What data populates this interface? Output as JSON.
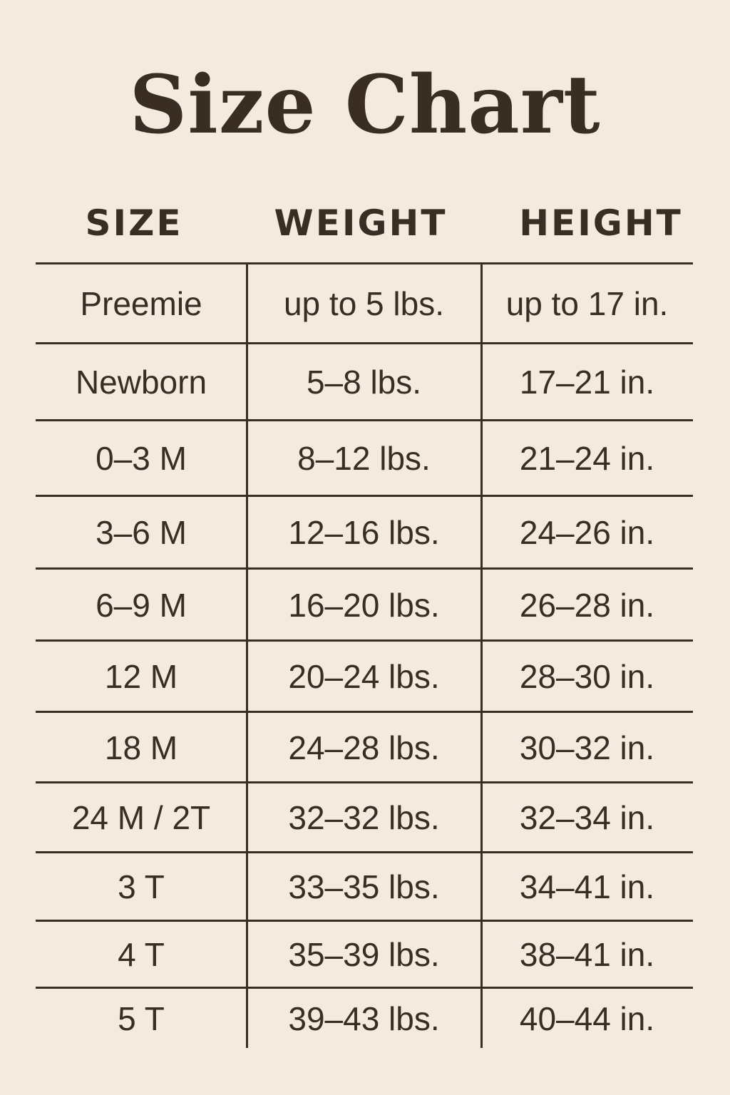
{
  "title": "Size Chart",
  "colors": {
    "background": "#f3ebdf",
    "text": "#3a2d24"
  },
  "table": {
    "headers": [
      "SIZE",
      "WEIGHT",
      "HEIGHT"
    ],
    "rows": [
      [
        "Preemie",
        "up to 5 lbs.",
        "up to 17 in."
      ],
      [
        "Newborn",
        "5–8 lbs.",
        "17–21 in."
      ],
      [
        "0–3 M",
        "8–12 lbs.",
        "21–24 in."
      ],
      [
        "3–6 M",
        "12–16 lbs.",
        "24–26 in."
      ],
      [
        "6–9 M",
        "16–20 lbs.",
        "26–28 in."
      ],
      [
        "12 M",
        "20–24 lbs.",
        "28–30 in."
      ],
      [
        "18 M",
        "24–28 lbs.",
        "30–32 in."
      ],
      [
        "24 M / 2T",
        "32–32 lbs.",
        "32–34 in."
      ],
      [
        "3 T",
        "33–35 lbs.",
        "34–41 in."
      ],
      [
        "4 T",
        "35–39 lbs.",
        "38–41 in."
      ],
      [
        "5 T",
        "39–43 lbs.",
        "40–44 in."
      ]
    ]
  }
}
